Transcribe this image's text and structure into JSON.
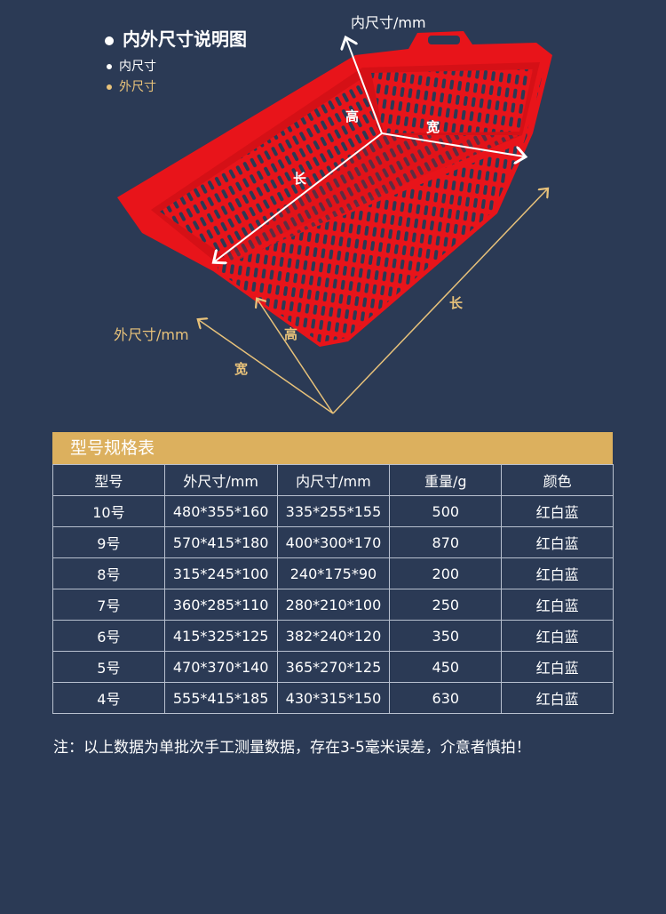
{
  "diagram": {
    "title": "内外尺寸说明图",
    "legend": [
      {
        "label": "内尺寸",
        "color": "#ffffff"
      },
      {
        "label": "外尺寸",
        "color": "#e8c27a"
      }
    ],
    "inner_label": "内尺寸/mm",
    "outer_label": "外尺寸/mm",
    "inner_dims": {
      "height": "高",
      "width": "宽",
      "length": "长"
    },
    "outer_dims": {
      "height": "高",
      "width": "宽",
      "length": "长"
    },
    "basket_color": "#e8141a"
  },
  "table": {
    "title": "型号规格表",
    "headers": [
      "型号",
      "外尺寸/mm",
      "内尺寸/mm",
      "重量/g",
      "颜色"
    ],
    "rows": [
      [
        "10号",
        "480*355*160",
        "335*255*155",
        "500",
        "红白蓝"
      ],
      [
        "9号",
        "570*415*180",
        "400*300*170",
        "870",
        "红白蓝"
      ],
      [
        "8号",
        "315*245*100",
        "240*175*90",
        "200",
        "红白蓝"
      ],
      [
        "7号",
        "360*285*110",
        "280*210*100",
        "250",
        "红白蓝"
      ],
      [
        "6号",
        "415*325*125",
        "382*240*120",
        "350",
        "红白蓝"
      ],
      [
        "5号",
        "470*370*140",
        "365*270*125",
        "450",
        "红白蓝"
      ],
      [
        "4号",
        "555*415*185",
        "430*315*150",
        "630",
        "红白蓝"
      ]
    ]
  },
  "note": "注：以上数据为单批次手工测量数据，存在3-5毫米误差，介意者慎拍！"
}
